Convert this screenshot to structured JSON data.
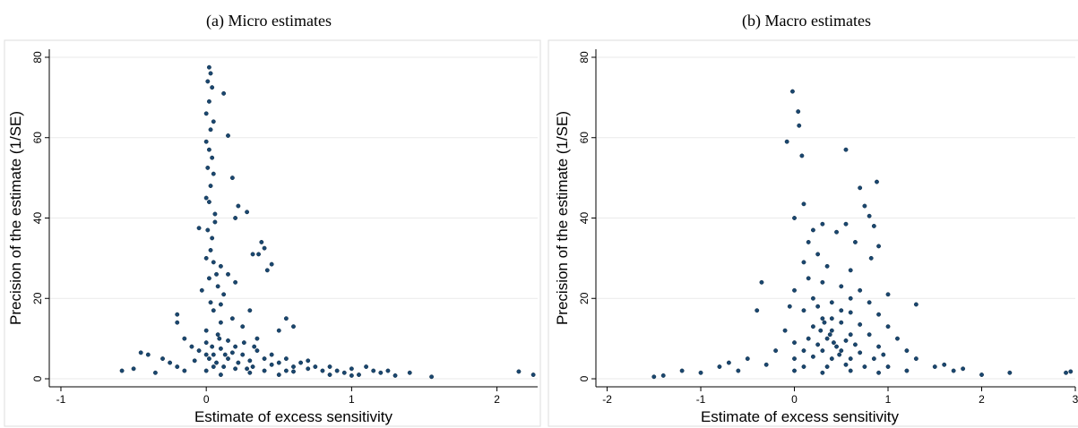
{
  "chart_data": [
    {
      "type": "scatter",
      "title": "(a) Micro estimates",
      "xlabel": "Estimate of excess sensitivity",
      "ylabel": "Precision of the estimate (1/SE)",
      "color": "#1a476f",
      "grid": true,
      "xlim": [
        -1.08,
        2.28
      ],
      "ylim": [
        -2,
        82
      ],
      "xticks": [
        -1,
        0,
        1,
        2
      ],
      "yticks": [
        0,
        20,
        40,
        60,
        80
      ],
      "x": [
        0.02,
        0.03,
        0.01,
        0.04,
        0.12,
        0.02,
        0.0,
        0.05,
        0.03,
        0.15,
        0.0,
        0.02,
        0.04,
        0.01,
        0.05,
        0.18,
        0.03,
        0.0,
        0.02,
        0.22,
        0.06,
        0.28,
        0.2,
        -0.05,
        0.01,
        0.04,
        0.38,
        0.4,
        0.32,
        0.36,
        0.0,
        0.05,
        0.45,
        0.42,
        0.1,
        0.15,
        0.02,
        0.2,
        0.08,
        -0.03,
        0.12,
        0.03,
        -0.2,
        -0.2,
        0.05,
        0.3,
        0.18,
        0.55,
        0.6,
        0.5,
        0.1,
        0.25,
        0.0,
        0.08,
        -0.15,
        0.35,
        0.15,
        -0.45,
        -0.4,
        -0.3,
        -0.25,
        -0.2,
        -0.1,
        -0.05,
        0.0,
        0.05,
        0.1,
        0.15,
        0.2,
        0.25,
        0.3,
        0.35,
        0.4,
        0.45,
        0.5,
        0.55,
        0.6,
        0.65,
        0.7,
        0.75,
        0.8,
        0.85,
        0.9,
        0.95,
        1.0,
        1.05,
        1.1,
        1.15,
        1.2,
        1.25,
        1.3,
        1.4,
        1.55,
        2.15,
        2.25,
        -0.58,
        -0.5,
        -0.35,
        -0.15,
        0.0,
        0.05,
        0.1,
        0.2,
        0.3,
        0.4,
        0.5,
        0.6,
        0.02,
        0.07,
        0.12,
        0.22,
        0.28,
        0.32,
        0.18,
        -0.08,
        0.0,
        0.04,
        0.09,
        0.13,
        0.26,
        0.33,
        0.45,
        0.55,
        0.7,
        0.85,
        1.0,
        0.1,
        0.07,
        0.03,
        0.06
      ],
      "values": [
        77.5,
        76,
        74,
        72.5,
        71,
        69,
        66,
        64,
        62,
        60.5,
        59,
        57,
        55,
        52.5,
        51,
        50,
        48,
        45,
        44,
        43,
        41,
        41.5,
        40,
        37.5,
        37,
        35,
        34,
        32.5,
        31,
        31,
        30,
        29,
        28.5,
        27,
        28,
        26,
        25,
        24,
        23,
        22,
        21,
        19,
        16,
        14,
        17,
        17,
        15,
        15,
        13,
        12,
        14,
        13,
        12,
        11,
        10,
        10,
        9.5,
        6.5,
        6,
        5,
        4,
        3,
        8,
        7,
        9,
        6,
        7.5,
        5,
        8,
        6,
        4.5,
        7,
        5,
        3.5,
        4,
        5,
        3,
        4,
        2.5,
        3,
        2,
        3,
        2,
        1.5,
        2.5,
        1,
        3,
        2,
        1.5,
        2,
        0.8,
        1.5,
        0.5,
        1.8,
        1,
        2,
        2.5,
        1.5,
        2,
        2,
        3,
        1,
        2.5,
        1.5,
        2,
        1,
        1.8,
        5,
        4,
        3,
        4,
        2.5,
        3,
        6.5,
        4.5,
        6,
        8,
        10,
        6,
        9,
        8,
        6,
        2,
        4.5,
        1,
        0.8,
        18.5,
        26,
        32,
        39
      ]
    },
    {
      "type": "scatter",
      "title": "(b) Macro estimates",
      "xlabel": "Estimate of excess sensitivity",
      "ylabel": "Precision of the estimate (1/SE)",
      "color": "#1a476f",
      "grid": true,
      "xlim": [
        -2.12,
        3.0
      ],
      "ylim": [
        -2,
        82
      ],
      "xticks": [
        -2,
        -1,
        0,
        1,
        2,
        3
      ],
      "yticks": [
        0,
        20,
        40,
        60,
        80
      ],
      "x": [
        -0.02,
        0.04,
        0.05,
        -0.08,
        0.08,
        0.55,
        0.7,
        0.88,
        0.1,
        0.75,
        0.8,
        0.0,
        0.55,
        0.85,
        0.3,
        0.2,
        0.45,
        0.15,
        0.65,
        0.9,
        0.25,
        0.82,
        0.1,
        0.35,
        0.6,
        -0.35,
        0.15,
        0.3,
        0.5,
        0.7,
        1.0,
        0.2,
        0.4,
        0.8,
        -0.4,
        1.3,
        0.1,
        0.6,
        0.9,
        0.3,
        0.5,
        0.7,
        0.2,
        1.0,
        -0.1,
        0.4,
        0.6,
        0.8,
        0.15,
        0.35,
        0.55,
        1.1,
        0.0,
        0.25,
        0.45,
        0.65,
        0.9,
        -0.2,
        0.1,
        0.3,
        0.5,
        0.7,
        1.2,
        -0.5,
        0.0,
        0.2,
        0.4,
        0.6,
        0.85,
        1.3,
        -0.8,
        -0.3,
        0.1,
        0.35,
        0.55,
        0.75,
        1.0,
        1.5,
        -1.0,
        -1.2,
        -0.6,
        0.0,
        0.3,
        0.6,
        0.9,
        1.2,
        1.7,
        2.0,
        2.3,
        -1.5,
        -1.4,
        2.9,
        2.95,
        0.38,
        0.42,
        0.48,
        0.28,
        0.32,
        0.4,
        0.5,
        0.25,
        0.6,
        0.0,
        -0.05,
        1.6,
        1.8,
        -0.7,
        0.95
      ],
      "values": [
        71.5,
        66.5,
        63,
        59,
        55.5,
        57,
        47.5,
        49,
        43.5,
        43,
        40.5,
        40,
        38.5,
        38,
        38.5,
        37,
        36.5,
        34,
        34,
        33,
        31,
        30,
        29,
        28,
        27,
        24,
        25,
        24,
        23,
        22,
        21,
        20,
        19,
        19,
        17,
        18.5,
        17,
        16.5,
        16,
        15,
        14,
        13.5,
        13,
        13,
        12,
        12,
        11,
        11,
        10,
        10,
        9.5,
        10,
        9,
        8.5,
        8,
        8.5,
        8,
        7,
        7,
        7,
        7,
        6.5,
        7,
        5,
        5,
        5.5,
        5,
        5,
        5,
        5,
        3,
        3.5,
        3,
        3,
        3.5,
        3,
        3,
        3,
        1.5,
        2,
        2,
        2,
        1.5,
        2,
        1.5,
        2,
        2,
        1,
        1.5,
        0.5,
        0.8,
        1.5,
        1.8,
        11,
        9,
        6,
        12,
        14,
        15,
        17,
        18,
        20,
        22,
        18,
        3.5,
        2.5,
        4,
        6
      ]
    }
  ]
}
